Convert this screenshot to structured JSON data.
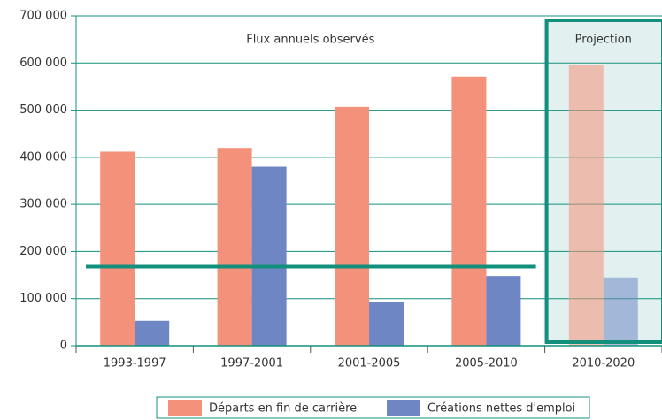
{
  "chart_data": {
    "type": "bar",
    "categories": [
      "1993-1997",
      "1997-2001",
      "2001-2005",
      "2005-2010",
      "2010-2020"
    ],
    "series": [
      {
        "name": "Départs en fin de carrière",
        "color": "#f4917a",
        "values": [
          412000,
          420000,
          507000,
          571000,
          595000
        ]
      },
      {
        "name": "Créations nettes d'emploi",
        "color": "#6f86c4",
        "values": [
          53000,
          380000,
          93000,
          148000,
          145000
        ]
      }
    ],
    "reference_line": 168000,
    "annotations": [
      "Flux annuels observés",
      "Projection"
    ],
    "ylim": [
      0,
      700000
    ],
    "yticks": [
      0,
      {
        "value": 100000,
        "label": "100 000"
      },
      {
        "value": 200000,
        "label": "200 000"
      },
      {
        "value": 300000,
        "label": "300 000"
      },
      {
        "value": 400000,
        "label": "400 000"
      },
      {
        "value": 500000,
        "label": "500 000"
      },
      {
        "value": 600000,
        "label": "600 000"
      },
      {
        "value": 700000,
        "label": "700 000"
      }
    ],
    "grid": true
  }
}
